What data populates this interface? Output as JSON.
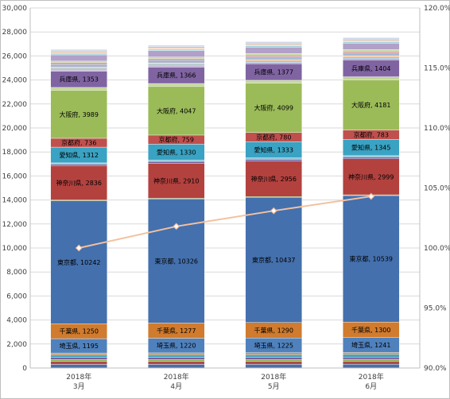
{
  "chart_data": {
    "type": "bar",
    "stacked": true,
    "title": "",
    "xlabel": "",
    "ylabel": "",
    "categories": [
      [
        "2018年",
        "3月"
      ],
      [
        "2018年",
        "4月"
      ],
      [
        "2018年",
        "5月"
      ],
      [
        "2018年",
        "6月"
      ]
    ],
    "ylim": [
      0,
      30000
    ],
    "y_ticks": [
      "0",
      "2,000",
      "4,000",
      "6,000",
      "8,000",
      "10,000",
      "12,000",
      "14,000",
      "16,000",
      "18,000",
      "20,000",
      "22,000",
      "24,000",
      "26,000",
      "28,000",
      "30,000"
    ],
    "y2lim": [
      90,
      120
    ],
    "y2_ticks": [
      "90.0%",
      "95.0%",
      "100.0%",
      "105.0%",
      "110.0%",
      "115.0%",
      "120.0%"
    ],
    "grid": true,
    "legend": "none",
    "series": [
      {
        "name": "",
        "color": "#4a6fa5",
        "values": [
          300,
          305,
          308,
          312
        ]
      },
      {
        "name": "",
        "color": "#b04a48",
        "values": [
          250,
          252,
          255,
          258
        ]
      },
      {
        "name": "",
        "color": "#8aa84a",
        "values": [
          150,
          150,
          152,
          154
        ]
      },
      {
        "name": "",
        "color": "#7a5fa0",
        "values": [
          180,
          182,
          184,
          186
        ]
      },
      {
        "name": "",
        "color": "#3fa3c0",
        "values": [
          220,
          222,
          224,
          226
        ]
      },
      {
        "name": "",
        "color": "#e08a3a",
        "values": [
          150,
          150,
          152,
          154
        ]
      },
      {
        "name": "埼玉県",
        "color": "#4f81bd",
        "label": "埼玉県",
        "values": [
          1195,
          1220,
          1225,
          1241
        ]
      },
      {
        "name": "千葉県",
        "color": "#d07b2e",
        "label": "千葉県",
        "values": [
          1250,
          1277,
          1290,
          1300
        ]
      },
      {
        "name": "東京都",
        "color": "#4470ad",
        "label": "東京都",
        "values": [
          10242,
          10326,
          10437,
          10539
        ]
      },
      {
        "name": "",
        "color": "#7ea342",
        "values": [
          60,
          61,
          61,
          62
        ]
      },
      {
        "name": "神奈川県",
        "color": "#b3423f",
        "label": "神奈川県",
        "values": [
          2836,
          2910,
          2956,
          2999
        ]
      },
      {
        "name": "",
        "color": "#6f5896",
        "values": [
          140,
          142,
          144,
          146
        ]
      },
      {
        "name": "",
        "color": "#8cc0d6",
        "values": [
          120,
          121,
          122,
          124
        ]
      },
      {
        "name": "愛知県",
        "color": "#3aa2c2",
        "label": "愛知県",
        "values": [
          1312,
          1330,
          1333,
          1345
        ]
      },
      {
        "name": "京都府",
        "color": "#c0504d",
        "label": "京都府",
        "values": [
          736,
          759,
          780,
          783
        ]
      },
      {
        "name": "大阪府",
        "color": "#9bbb59",
        "label": "大阪府",
        "values": [
          3989,
          4047,
          4099,
          4181
        ]
      },
      {
        "name": "",
        "color": "#c2d59b",
        "values": [
          250,
          252,
          254,
          256
        ]
      },
      {
        "name": "兵庫県",
        "color": "#8064a2",
        "label": "兵庫県",
        "values": [
          1353,
          1366,
          1377,
          1404
        ]
      },
      {
        "name": "",
        "color": "#b9a6cf",
        "values": [
          100,
          100,
          101,
          102
        ]
      },
      {
        "name": "",
        "color": "#93c3d8",
        "values": [
          140,
          140,
          142,
          143
        ]
      },
      {
        "name": "",
        "color": "#f3b581",
        "values": [
          110,
          111,
          112,
          113
        ]
      },
      {
        "name": "",
        "color": "#a2b5d4",
        "values": [
          220,
          221,
          222,
          224
        ]
      },
      {
        "name": "",
        "color": "#d49693",
        "values": [
          140,
          140,
          141,
          142
        ]
      },
      {
        "name": "",
        "color": "#c6d8a0",
        "values": [
          130,
          130,
          131,
          132
        ]
      },
      {
        "name": "",
        "color": "#b1a0c7",
        "values": [
          520,
          525,
          530,
          535
        ]
      },
      {
        "name": "",
        "color": "#a1d1de",
        "values": [
          120,
          121,
          122,
          123
        ]
      },
      {
        "name": "",
        "color": "#f8cba6",
        "values": [
          100,
          101,
          102,
          103
        ]
      },
      {
        "name": "",
        "color": "#bfbfbf",
        "values": [
          110,
          110,
          111,
          112
        ]
      },
      {
        "name": "",
        "color": "#cfd9ea",
        "values": [
          127,
          128,
          128,
          130
        ]
      }
    ],
    "line_series": {
      "name": "",
      "axis": "secondary",
      "color": "#f4c09e",
      "values": [
        100.0,
        101.8,
        103.1,
        104.3
      ]
    }
  }
}
